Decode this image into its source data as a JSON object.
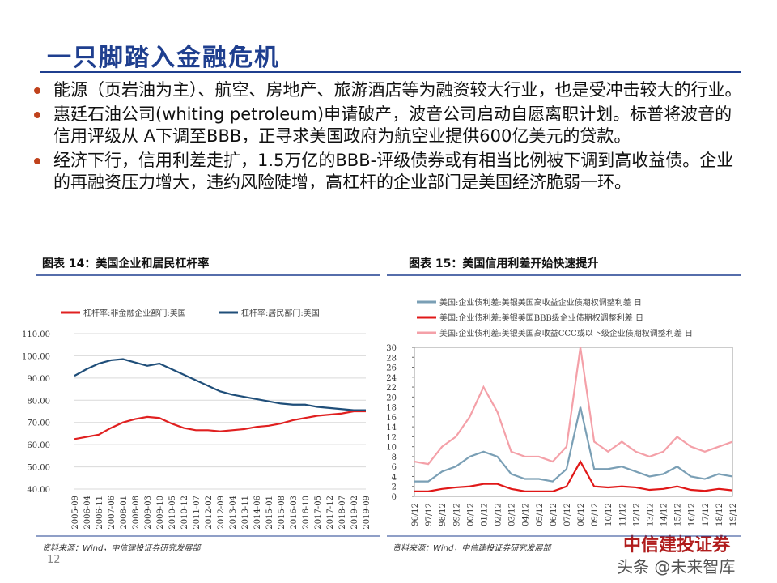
{
  "title": "一只脚踏入金融危机",
  "bullets": [
    "能源（页岩油为主）、航空、房地产、旅游酒店等为融资较大行业，也是受冲击较大的行业。",
    "惠廷石油公司(whiting petroleum)申请破产，波音公司启动自愿离职计划。标普将波音的信用评级从 A下调至BBB，正寻求美国政府为航空业提供600亿美元的贷款。",
    "经济下行，信用利差走扩，1.5万亿的BBB-评级债券或有相当比例被下调到高收益债。企业的再融资压力增大，违约风险陡增，高杠杆的企业部门是美国经济脆弱一环。"
  ],
  "page_number": "12",
  "logo": "中信建投证券",
  "watermark": "头条 @未来智库",
  "chart_data": [
    {
      "type": "line",
      "title": "图表 14：美国企业和居民杠杆率",
      "source": "资料来源：Wind，中信建投证券研究发展部",
      "categories": [
        "2005-09",
        "2006-04",
        "2006-11",
        "2007-06",
        "2008-01",
        "2008-08",
        "2009-03",
        "2009-10",
        "2010-05",
        "2010-12",
        "2011-07",
        "2012-02",
        "2012-09",
        "2013-04",
        "2013-11",
        "2014-06",
        "2015-01",
        "2015-08",
        "2016-03",
        "2016-10",
        "2017-05",
        "2017-12",
        "2018-07",
        "2019-02",
        "2019-09"
      ],
      "series": [
        {
          "name": "杠杆率:非金融企业部门:美国",
          "color": "#e02020",
          "values": [
            62.5,
            63.5,
            64.5,
            67.5,
            70,
            71.5,
            72.5,
            72,
            69.5,
            67.5,
            66.5,
            66.5,
            66,
            66.5,
            67,
            68,
            68.5,
            69.5,
            71,
            72,
            73,
            73.5,
            74,
            75,
            75
          ]
        },
        {
          "name": "杠杆率:居民部门:美国",
          "color": "#1f4e79",
          "values": [
            91,
            94,
            96.5,
            98,
            98.5,
            97,
            95.5,
            96.5,
            94,
            91.5,
            89,
            86.5,
            84,
            82.5,
            81.5,
            80.5,
            79.5,
            78.5,
            78,
            78,
            77,
            76.5,
            76,
            75.5,
            75.5
          ]
        }
      ],
      "ylim": [
        40,
        110
      ],
      "yticks": [
        {
          "value": 40,
          "label": "40.00"
        },
        {
          "value": 50,
          "label": "50.00"
        },
        {
          "value": 60,
          "label": "60.00"
        },
        {
          "value": 70,
          "label": "70.00"
        },
        {
          "value": 80,
          "label": "80.00"
        },
        {
          "value": 90,
          "label": "90.00"
        },
        {
          "value": 100,
          "label": "100.00"
        },
        {
          "value": 110,
          "label": "110.00"
        }
      ],
      "grid": true
    },
    {
      "type": "line",
      "title": "图表 15：美国信用利差开始快速提升",
      "source": "资料来源：Wind，中信建投证券研究发展部",
      "categories": [
        "96/12",
        "97/12",
        "98/12",
        "99/12",
        "00/12",
        "01/12",
        "02/12",
        "03/12",
        "04/12",
        "05/12",
        "06/12",
        "07/12",
        "08/12",
        "09/12",
        "10/12",
        "11/12",
        "12/12",
        "13/12",
        "14/12",
        "15/12",
        "16/12",
        "17/12",
        "18/12",
        "19/12"
      ],
      "series": [
        {
          "name": "美国:企业债利差:美银美国高收益企业债期权调整利差 日",
          "color": "#7a9fb5",
          "values": [
            3,
            3,
            5,
            6,
            8,
            9,
            8,
            4.5,
            3.5,
            3.5,
            3,
            5.5,
            18,
            5.5,
            5.5,
            6,
            5,
            4,
            4.5,
            6,
            4,
            3.5,
            4.5,
            4
          ]
        },
        {
          "name": "美国:企业债利差:美银美国BBB级企业债期权调整利差 日",
          "color": "#e01818",
          "values": [
            1,
            1,
            1.5,
            1.8,
            2,
            2.5,
            2.5,
            1.5,
            1,
            1,
            1,
            2,
            7,
            2,
            1.8,
            2,
            1.8,
            1.3,
            1.5,
            2,
            1.3,
            1.1,
            1.5,
            1.2
          ]
        },
        {
          "name": "美国:企业债利差:美银美国高收益CCC或以下级企业债期权调整利差 日",
          "color": "#f4a0a8",
          "values": [
            7,
            6.5,
            10,
            12,
            16,
            22,
            17,
            9,
            8,
            8,
            7,
            10,
            30,
            11,
            9,
            11,
            9,
            8,
            9,
            12,
            10,
            9,
            10,
            11
          ]
        }
      ],
      "ylim": [
        0,
        30
      ],
      "yticks": [
        0,
        2,
        4,
        6,
        8,
        10,
        12,
        14,
        16,
        18,
        20,
        22,
        24,
        26,
        28,
        30
      ],
      "grid": false
    }
  ]
}
